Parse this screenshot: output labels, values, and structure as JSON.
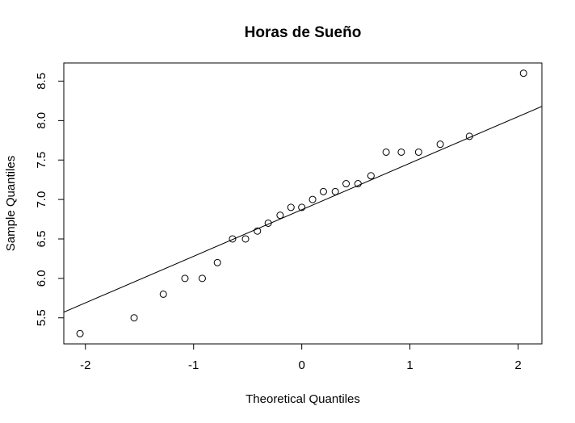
{
  "chart_data": {
    "type": "scatter",
    "title": "Horas de Sueño",
    "xlabel": "Theoretical Quantiles",
    "ylabel": "Sample Quantiles",
    "xlim": [
      -2.2,
      2.22
    ],
    "ylim": [
      5.17,
      8.73
    ],
    "x_ticks": [
      -2,
      -1,
      0,
      1,
      2
    ],
    "x_tick_labels": [
      "-2",
      "-1",
      "0",
      "1",
      "2"
    ],
    "y_ticks": [
      5.5,
      6.0,
      6.5,
      7.0,
      7.5,
      8.0,
      8.5
    ],
    "y_tick_labels": [
      "5.5",
      "6.0",
      "6.5",
      "7.0",
      "7.5",
      "8.0",
      "8.5"
    ],
    "grid": false,
    "points": [
      {
        "x": -2.05,
        "y": 5.3
      },
      {
        "x": -1.55,
        "y": 5.5
      },
      {
        "x": -1.28,
        "y": 5.8
      },
      {
        "x": -1.08,
        "y": 6.0
      },
      {
        "x": -0.92,
        "y": 6.0
      },
      {
        "x": -0.78,
        "y": 6.2
      },
      {
        "x": -0.64,
        "y": 6.5
      },
      {
        "x": -0.52,
        "y": 6.5
      },
      {
        "x": -0.41,
        "y": 6.6
      },
      {
        "x": -0.31,
        "y": 6.7
      },
      {
        "x": -0.2,
        "y": 6.8
      },
      {
        "x": -0.1,
        "y": 6.9
      },
      {
        "x": 0.0,
        "y": 6.9
      },
      {
        "x": 0.1,
        "y": 7.0
      },
      {
        "x": 0.2,
        "y": 7.1
      },
      {
        "x": 0.31,
        "y": 7.1
      },
      {
        "x": 0.41,
        "y": 7.2
      },
      {
        "x": 0.52,
        "y": 7.2
      },
      {
        "x": 0.64,
        "y": 7.3
      },
      {
        "x": 0.78,
        "y": 7.6
      },
      {
        "x": 0.92,
        "y": 7.6
      },
      {
        "x": 1.08,
        "y": 7.6
      },
      {
        "x": 1.28,
        "y": 7.7
      },
      {
        "x": 1.55,
        "y": 7.8
      },
      {
        "x": 2.05,
        "y": 8.6
      }
    ],
    "reference_line": {
      "intercept": 6.87,
      "slope": 0.59
    },
    "point_style": "open-circle",
    "colors": {
      "points": "#000000",
      "line": "#000000",
      "axes": "#000000"
    }
  }
}
